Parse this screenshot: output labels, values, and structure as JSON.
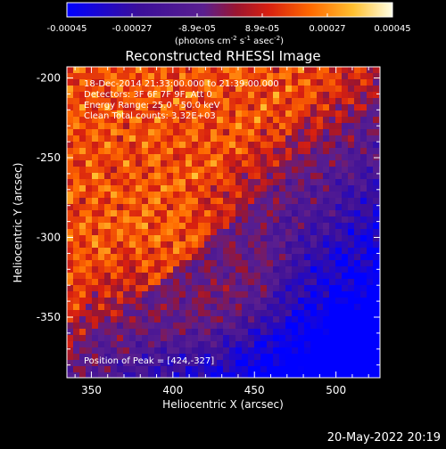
{
  "chart_data": {
    "type": "heatmap",
    "title": "Reconstructed RHESSI Image",
    "xlabel": "Heliocentric X (arcsec)",
    "ylabel": "Heliocentric Y (arcsec)",
    "xlim": [
      335,
      527
    ],
    "ylim": [
      -388,
      -193
    ],
    "xticks": [
      350,
      400,
      450,
      500
    ],
    "yticks": [
      -200,
      -250,
      -300,
      -350
    ],
    "colorbar": {
      "ticks": [
        "-0.00045",
        "-0.00027",
        "-8.9e-05",
        "8.9e-05",
        "0.00027",
        "0.00045"
      ],
      "range": [
        -0.00045,
        0.00045
      ],
      "units_prefix": "(photons cm",
      "units_sup1": "-2",
      "units_mid": " s",
      "units_sup2": "-1",
      "units_mid2": " asec",
      "units_sup3": "-2",
      "units_suffix": ")"
    },
    "annotations": [
      "18-Dec-2014 21:33:00.000 to 21:39:00.000",
      "Detectors: 3F 6F 7F 9F, Att 0",
      "Energy Range: 25.0 - 50.0 keV",
      "Clean    Total counts: 3.32E+03"
    ],
    "peak_label": "Position of Peak = [424,-327]",
    "peak": [
      424,
      -327
    ],
    "colors": {
      "background": "#000000",
      "colormap": [
        "#0000ff",
        "#3a0a8a",
        "#5a1f8f",
        "#b41e1e",
        "#ff5a00",
        "#ff9a1a",
        "#ffd84a",
        "#ffffe6"
      ]
    }
  },
  "footer": {
    "timestamp": "20-May-2022 20:19"
  }
}
